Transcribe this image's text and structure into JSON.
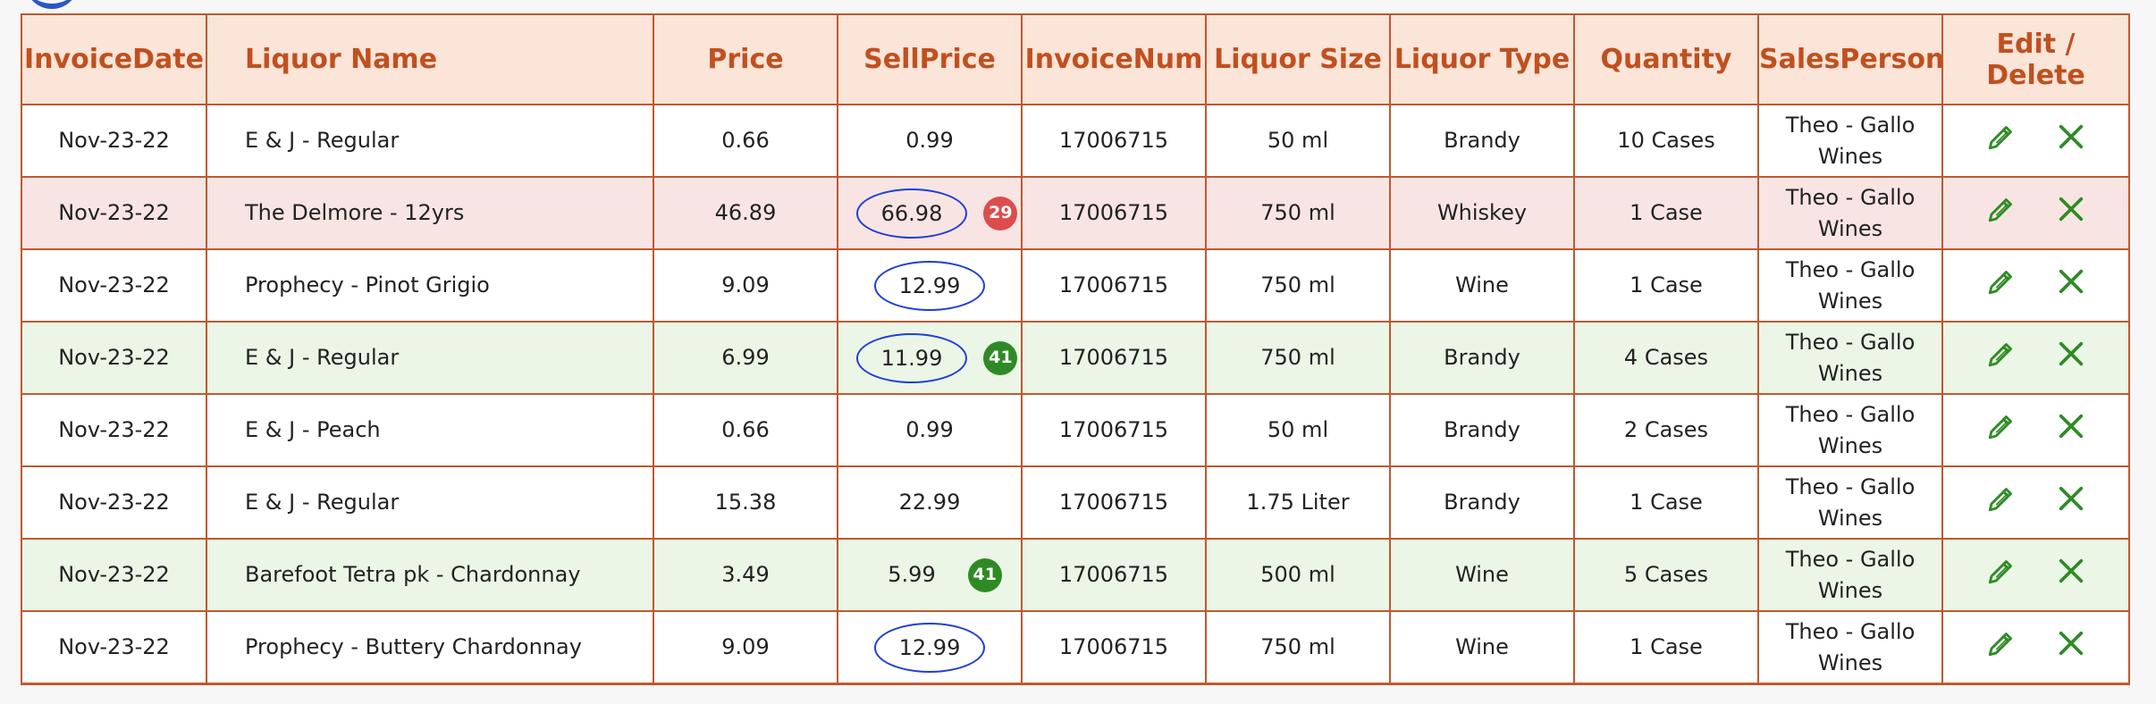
{
  "columns": {
    "invoice_date": "InvoiceDate",
    "liquor_name": "Liquor Name",
    "price": "Price",
    "sell_price": "SellPrice",
    "invoice_num": "InvoiceNum",
    "liquor_size": "Liquor Size",
    "liquor_type": "Liquor Type",
    "quantity": "Quantity",
    "sales_person": "SalesPerson",
    "edit_delete": "Edit / Delete"
  },
  "colors": {
    "header_bg": "#fbe4d8",
    "header_text": "#c0501f",
    "border": "#c0582f",
    "row_pink": "#f8e5e3",
    "row_green": "#ebf6e6",
    "circle": "#1f3fd6",
    "badge_red": "#dd4c4c",
    "badge_green": "#2e8b24",
    "icon_green": "#2e8b24"
  },
  "icons": {
    "edit": "pencil-icon",
    "delete": "close-icon"
  },
  "rows": [
    {
      "date": "Nov-23-22",
      "name": "E & J - Regular",
      "price": "0.66",
      "sell_price": "0.99",
      "circled": false,
      "badge": null,
      "invoice_num": "17006715",
      "size": "50 ml",
      "type": "Brandy",
      "quantity": "10 Cases",
      "sales_person_1": "Theo - Gallo",
      "sales_person_2": "Wines",
      "highlight": "white"
    },
    {
      "date": "Nov-23-22",
      "name": "The Delmore - 12yrs",
      "price": "46.89",
      "sell_price": "66.98",
      "circled": true,
      "badge": "29",
      "badge_color": "red",
      "invoice_num": "17006715",
      "size": "750 ml",
      "type": "Whiskey",
      "quantity": "1 Case",
      "sales_person_1": "Theo - Gallo",
      "sales_person_2": "Wines",
      "highlight": "pink"
    },
    {
      "date": "Nov-23-22",
      "name": "Prophecy - Pinot Grigio",
      "price": "9.09",
      "sell_price": "12.99",
      "circled": true,
      "badge": null,
      "invoice_num": "17006715",
      "size": "750 ml",
      "type": "Wine",
      "quantity": "1 Case",
      "sales_person_1": "Theo - Gallo",
      "sales_person_2": "Wines",
      "highlight": "white"
    },
    {
      "date": "Nov-23-22",
      "name": "E & J - Regular",
      "price": "6.99",
      "sell_price": "11.99",
      "circled": true,
      "badge": "41",
      "badge_color": "green",
      "invoice_num": "17006715",
      "size": "750 ml",
      "type": "Brandy",
      "quantity": "4 Cases",
      "sales_person_1": "Theo - Gallo",
      "sales_person_2": "Wines",
      "highlight": "green"
    },
    {
      "date": "Nov-23-22",
      "name": "E & J - Peach",
      "price": "0.66",
      "sell_price": "0.99",
      "circled": false,
      "badge": null,
      "invoice_num": "17006715",
      "size": "50 ml",
      "type": "Brandy",
      "quantity": "2 Cases",
      "sales_person_1": "Theo - Gallo",
      "sales_person_2": "Wines",
      "highlight": "white"
    },
    {
      "date": "Nov-23-22",
      "name": "E & J - Regular",
      "price": "15.38",
      "sell_price": "22.99",
      "circled": false,
      "badge": null,
      "invoice_num": "17006715",
      "size": "1.75 Liter",
      "type": "Brandy",
      "quantity": "1 Case",
      "sales_person_1": "Theo - Gallo",
      "sales_person_2": "Wines",
      "highlight": "white"
    },
    {
      "date": "Nov-23-22",
      "name": "Barefoot Tetra pk - Chardonnay",
      "price": "3.49",
      "sell_price": "5.99",
      "circled": false,
      "badge": "41",
      "badge_color": "green",
      "invoice_num": "17006715",
      "size": "500 ml",
      "type": "Wine",
      "quantity": "5 Cases",
      "sales_person_1": "Theo - Gallo",
      "sales_person_2": "Wines",
      "highlight": "green"
    },
    {
      "date": "Nov-23-22",
      "name": "Prophecy - Buttery Chardonnay",
      "price": "9.09",
      "sell_price": "12.99",
      "circled": true,
      "badge": null,
      "invoice_num": "17006715",
      "size": "750 ml",
      "type": "Wine",
      "quantity": "1 Case",
      "sales_person_1": "Theo - Gallo",
      "sales_person_2": "Wines",
      "highlight": "white"
    }
  ]
}
